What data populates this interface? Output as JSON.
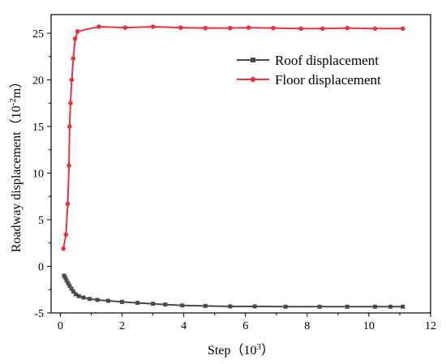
{
  "chart_data": {
    "type": "line",
    "title": "",
    "xlabel": "Step（10",
    "xlabel_sup": "3",
    "xlabel_suffix": "）",
    "ylabel": "Roadway displacement（10",
    "ylabel_sup": "-2",
    "ylabel_suffix": "m）",
    "xlim": [
      -0.3,
      12
    ],
    "ylim": [
      -5,
      27
    ],
    "xticks": [
      0,
      2,
      4,
      6,
      8,
      10,
      12
    ],
    "yticks": [
      -5,
      0,
      5,
      10,
      15,
      20,
      25
    ],
    "grid": false,
    "legend_position": "top-right",
    "series": [
      {
        "name": "Roof displacement",
        "color": "#4a4a4a",
        "marker": "square",
        "x": [
          0.12,
          0.16,
          0.2,
          0.25,
          0.3,
          0.36,
          0.42,
          0.5,
          0.6,
          0.75,
          0.95,
          1.2,
          1.55,
          2.0,
          2.5,
          3.0,
          3.4,
          3.95,
          4.7,
          5.5,
          6.3,
          7.3,
          8.4,
          9.3,
          10.2,
          10.7,
          11.1
        ],
        "values": [
          -1.0,
          -1.2,
          -1.5,
          -1.8,
          -2.1,
          -2.4,
          -2.7,
          -3.0,
          -3.2,
          -3.35,
          -3.5,
          -3.6,
          -3.7,
          -3.82,
          -3.92,
          -4.02,
          -4.1,
          -4.2,
          -4.25,
          -4.3,
          -4.3,
          -4.33,
          -4.33,
          -4.33,
          -4.33,
          -4.33,
          -4.33
        ]
      },
      {
        "name": "Floor displacement",
        "color": "#e8343d",
        "marker": "circle",
        "x": [
          0.1,
          0.18,
          0.24,
          0.28,
          0.3,
          0.33,
          0.37,
          0.42,
          0.48,
          0.56,
          1.25,
          2.1,
          3.0,
          3.9,
          4.7,
          5.5,
          6.1,
          6.9,
          7.8,
          8.5,
          9.3,
          10.2,
          11.1
        ],
        "values": [
          1.9,
          3.4,
          6.7,
          10.8,
          15.0,
          17.5,
          20.0,
          22.3,
          24.4,
          25.2,
          25.7,
          25.6,
          25.7,
          25.6,
          25.55,
          25.55,
          25.6,
          25.55,
          25.5,
          25.5,
          25.55,
          25.5,
          25.5
        ]
      }
    ]
  }
}
